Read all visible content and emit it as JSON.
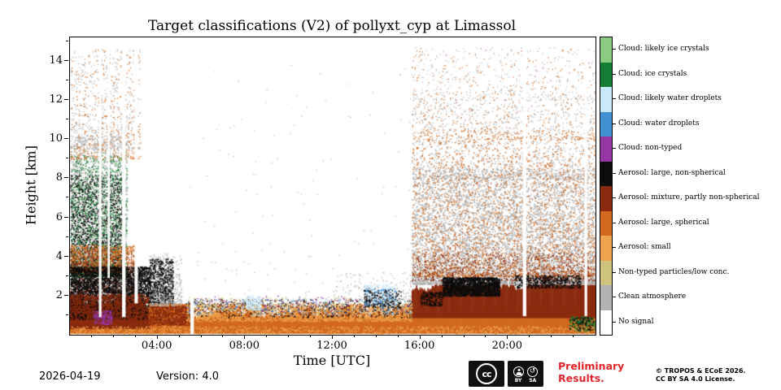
{
  "figure": {
    "footer": {
      "date": "2026-04-19",
      "version": "Version: 4.0",
      "preliminary_line1": "Preliminary",
      "preliminary_line2": "Results.",
      "preliminary_color": "#e3242b",
      "copyright_line1": "© TROPOS & ECoE 2026.",
      "copyright_line2": "CC BY SA 4.0 License.",
      "cc_badge": {
        "cc": "cc",
        "by": "BY",
        "sa": "SA"
      }
    }
  },
  "chart_data": {
    "type": "heatmap",
    "title": "Target classifications (V2) of pollyxt_cyp at Limassol",
    "xlabel": "Time [UTC]",
    "ylabel": "Height [km]",
    "x_range_hours": [
      0,
      24
    ],
    "y_range_km": [
      0,
      15.2
    ],
    "xticks": [
      {
        "hour": 4,
        "label": "04:00"
      },
      {
        "hour": 8,
        "label": "08:00"
      },
      {
        "hour": 12,
        "label": "12:00"
      },
      {
        "hour": 16,
        "label": "16:00"
      },
      {
        "hour": 20,
        "label": "20:00"
      }
    ],
    "xticks_minor_hours": [
      1,
      2,
      3,
      5,
      6,
      7,
      9,
      10,
      11,
      13,
      14,
      15,
      17,
      18,
      19,
      21,
      22,
      23
    ],
    "yticks": [
      2,
      4,
      6,
      8,
      10,
      12,
      14
    ],
    "yticks_minor": [
      1,
      3,
      5,
      7,
      9,
      11,
      13,
      15
    ],
    "grid": false,
    "legend_position": "right",
    "categories": [
      {
        "label": "Cloud: likely ice crystals",
        "color": "#8cc981"
      },
      {
        "label": "Cloud: ice crystals",
        "color": "#127d33"
      },
      {
        "label": "Cloud: likely water droplets",
        "color": "#c9e8fa"
      },
      {
        "label": "Cloud: water droplets",
        "color": "#4292d3"
      },
      {
        "label": "Cloud: non-typed",
        "color": "#9637a5"
      },
      {
        "label": "Aerosol: large, non-spherical",
        "color": "#0d0d0d"
      },
      {
        "label": "Aerosol: mixture, partly non-spherical",
        "color": "#8a2b0f"
      },
      {
        "label": "Aerosol: large, spherical",
        "color": "#d2691e"
      },
      {
        "label": "Aerosol: small",
        "color": "#eda24d"
      },
      {
        "label": "Non-typed particles/low conc.",
        "color": "#cfc47e"
      },
      {
        "label": "Clean atmosphere",
        "color": "#b3b3b3"
      },
      {
        "label": "No signal",
        "color": "#ffffff"
      }
    ],
    "render": {
      "seed": 1337,
      "layers": [
        {
          "name": "ground-aerosol-base",
          "t": [
            0,
            24
          ],
          "h0": 0.05,
          "top0": 0.8,
          "top1": 0.8,
          "jitter": 0.2,
          "cat": 7
        },
        {
          "name": "morning-mixture-low",
          "t": [
            0,
            3.65
          ],
          "h0": 0.3,
          "top0": 1.9,
          "top1": 1.4,
          "jitter": 0.35,
          "cat": 6
        },
        {
          "name": "midday-boundary-layer",
          "t": [
            5.3,
            15.6
          ],
          "h0": 0.1,
          "top0": 1.05,
          "top1": 1.25,
          "jitter": 0.4,
          "cat": 7
        },
        {
          "name": "evening-orange-base",
          "t": [
            15.6,
            24
          ],
          "h0": 0.1,
          "top0": 1.4,
          "top1": 1.5,
          "jitter": 0.25,
          "cat": 7
        },
        {
          "name": "evening-mixture-band",
          "t": [
            15.6,
            24
          ],
          "h0": 0.85,
          "top0": 2.35,
          "top1": 2.95,
          "jitter": 0.3,
          "cat": 6
        }
      ],
      "speckles": [
        {
          "t": [
            0,
            2.6
          ],
          "h": [
            3.0,
            10.2
          ],
          "cat": 10,
          "n": 3200,
          "fade": "top",
          "sz": 1.4
        },
        {
          "t": [
            0,
            2.6
          ],
          "h": [
            3.0,
            9.2
          ],
          "cat": 1,
          "n": 1600,
          "fade": "top",
          "sz": 1.4
        },
        {
          "t": [
            0,
            2.4
          ],
          "h": [
            3.2,
            8.2
          ],
          "cat": 5,
          "n": 1600,
          "fade": "top",
          "sz": 1.4
        },
        {
          "t": [
            0,
            2.6
          ],
          "h": [
            3.6,
            9.6
          ],
          "cat": 0,
          "n": 260,
          "fade": "top",
          "sz": 1.4
        },
        {
          "t": [
            0,
            3.2
          ],
          "h": [
            9.5,
            14.6
          ],
          "cat": 10,
          "n": 650,
          "fade": "top",
          "sz": 1.3
        },
        {
          "t": [
            0,
            3.2
          ],
          "h": [
            9.0,
            14.6
          ],
          "cat": 7,
          "n": 380,
          "fade": "top",
          "sz": 1.3
        },
        {
          "t": [
            0.2,
            1.2
          ],
          "h": [
            3.8,
            4.6
          ],
          "cat": 2,
          "n": 70,
          "sz": 1.3
        },
        {
          "t": [
            0,
            3.0
          ],
          "h": [
            3.2,
            4.6
          ],
          "cat": 7,
          "n": 900,
          "sz": 1.4
        },
        {
          "t": [
            0,
            3.0
          ],
          "h": [
            2.2,
            4.3
          ],
          "cat": 6,
          "n": 700,
          "fade": "top",
          "sz": 1.4
        },
        {
          "t": [
            0,
            3.65
          ],
          "h": [
            0.8,
            3.5
          ],
          "cat": 5,
          "n": 4200,
          "sz": 1.5
        },
        {
          "t": [
            0,
            3.65
          ],
          "h": [
            0.5,
            2.1
          ],
          "cat": 6,
          "n": 1800,
          "sz": 1.5
        },
        {
          "t": [
            1.05,
            1.9
          ],
          "h": [
            0.55,
            1.25
          ],
          "cat": 4,
          "n": 170,
          "sz": 1.5
        },
        {
          "t": [
            3.6,
            4.7
          ],
          "h": [
            0.8,
            3.9
          ],
          "cat": 5,
          "n": 1400,
          "fade": "top",
          "sz": 1.5
        },
        {
          "t": [
            3.6,
            5.45
          ],
          "h": [
            0.4,
            1.6
          ],
          "cat": 7,
          "n": 1500,
          "sz": 1.5
        },
        {
          "t": [
            3.6,
            5.45
          ],
          "h": [
            0.5,
            1.5
          ],
          "cat": 6,
          "n": 650,
          "sz": 1.5
        },
        {
          "t": [
            3.6,
            5.1
          ],
          "h": [
            1.5,
            4.2
          ],
          "cat": 10,
          "n": 420,
          "fade": "top",
          "sz": 1.3
        },
        {
          "t": [
            5.3,
            15.6
          ],
          "h": [
            0.7,
            1.6
          ],
          "cat": 8,
          "n": 2600,
          "sz": 1.5
        },
        {
          "t": [
            5.3,
            15.6
          ],
          "h": [
            0.9,
            1.85
          ],
          "cat": 6,
          "n": 500,
          "sz": 1.4
        },
        {
          "t": [
            5.3,
            15.6
          ],
          "h": [
            0.9,
            1.8
          ],
          "cat": 5,
          "n": 380,
          "sz": 1.4
        },
        {
          "t": [
            5.3,
            15.6
          ],
          "h": [
            1.1,
            1.95
          ],
          "cat": 9,
          "n": 260,
          "sz": 1.4
        },
        {
          "t": [
            5.3,
            15.6
          ],
          "h": [
            1.2,
            2.0
          ],
          "cat": 4,
          "n": 110,
          "sz": 1.4
        },
        {
          "t": [
            5.3,
            15.6
          ],
          "h": [
            1.0,
            1.9
          ],
          "cat": 2,
          "n": 300,
          "sz": 1.4
        },
        {
          "t": [
            5.3,
            15.6
          ],
          "h": [
            1.0,
            1.85
          ],
          "cat": 3,
          "n": 180,
          "sz": 1.4
        },
        {
          "t": [
            8.0,
            8.7
          ],
          "h": [
            1.3,
            2.0
          ],
          "cat": 2,
          "n": 120,
          "sz": 1.5
        },
        {
          "t": [
            13.4,
            14.9
          ],
          "h": [
            1.5,
            2.6
          ],
          "cat": 2,
          "n": 240,
          "sz": 1.5
        },
        {
          "t": [
            13.4,
            14.9
          ],
          "h": [
            1.5,
            2.4
          ],
          "cat": 3,
          "n": 130,
          "sz": 1.5
        },
        {
          "t": [
            13.4,
            15.1
          ],
          "h": [
            1.4,
            2.3
          ],
          "cat": 5,
          "n": 170,
          "sz": 1.5
        },
        {
          "t": [
            5.3,
            15.6
          ],
          "h": [
            2.0,
            14.0
          ],
          "cat": 10,
          "n": 130,
          "fade": "top",
          "sz": 1.2
        },
        {
          "t": [
            12.0,
            15.6
          ],
          "h": [
            1.8,
            3.2
          ],
          "cat": 10,
          "n": 150,
          "fade": "top",
          "sz": 1.3
        },
        {
          "t": [
            15.6,
            24
          ],
          "h": [
            2.6,
            8.5
          ],
          "cat": 10,
          "n": 7000,
          "fade": "top",
          "sz": 1.5
        },
        {
          "t": [
            15.6,
            24
          ],
          "h": [
            8.0,
            12.2
          ],
          "cat": 10,
          "n": 1400,
          "fade": "top",
          "sz": 1.3
        },
        {
          "t": [
            15.6,
            24
          ],
          "h": [
            12.0,
            14.7
          ],
          "cat": 10,
          "n": 360,
          "fade": "top",
          "sz": 1.2
        },
        {
          "t": [
            15.6,
            24
          ],
          "h": [
            3.0,
            10.5
          ],
          "cat": 7,
          "n": 2600,
          "fade": "top",
          "sz": 1.4
        },
        {
          "t": [
            15.6,
            24
          ],
          "h": [
            10.0,
            14.7
          ],
          "cat": 7,
          "n": 520,
          "fade": "top",
          "sz": 1.2
        },
        {
          "t": [
            15.6,
            24
          ],
          "h": [
            2.8,
            4.2
          ],
          "cat": 6,
          "n": 700,
          "fade": "top",
          "sz": 1.4
        },
        {
          "t": [
            17.0,
            19.6
          ],
          "h": [
            2.0,
            2.95
          ],
          "cat": 5,
          "n": 1600,
          "sz": 1.6
        },
        {
          "t": [
            20.3,
            23.3
          ],
          "h": [
            2.4,
            3.05
          ],
          "cat": 5,
          "n": 450,
          "sz": 1.5
        },
        {
          "t": [
            16.0,
            17.0
          ],
          "h": [
            1.5,
            2.2
          ],
          "cat": 5,
          "n": 200,
          "sz": 1.5
        },
        {
          "t": [
            22.8,
            24
          ],
          "h": [
            0.2,
            0.95
          ],
          "cat": 1,
          "n": 150,
          "sz": 1.6
        },
        {
          "t": [
            22.8,
            24
          ],
          "h": [
            0.25,
            0.9
          ],
          "cat": 5,
          "n": 90,
          "sz": 1.5
        },
        {
          "t": [
            0,
            24
          ],
          "h": [
            0.05,
            0.45
          ],
          "cat": 8,
          "n": 1200,
          "sz": 1.4
        }
      ],
      "no_signal_stripes": [
        {
          "t": [
            1.32,
            1.44
          ],
          "h": [
            0.9,
            14.8
          ]
        },
        {
          "t": [
            1.72,
            1.82
          ],
          "h": [
            2.9,
            14.8
          ]
        },
        {
          "t": [
            2.38,
            2.54
          ],
          "h": [
            0.9,
            14.8
          ]
        },
        {
          "t": [
            2.95,
            3.1
          ],
          "h": [
            1.6,
            14.8
          ]
        },
        {
          "t": [
            5.5,
            5.66
          ],
          "h": [
            0.05,
            14.8
          ]
        },
        {
          "t": [
            20.68,
            20.84
          ],
          "h": [
            0.95,
            14.8
          ]
        },
        {
          "t": [
            23.5,
            23.62
          ],
          "h": [
            0.95,
            14.8
          ]
        }
      ]
    }
  }
}
